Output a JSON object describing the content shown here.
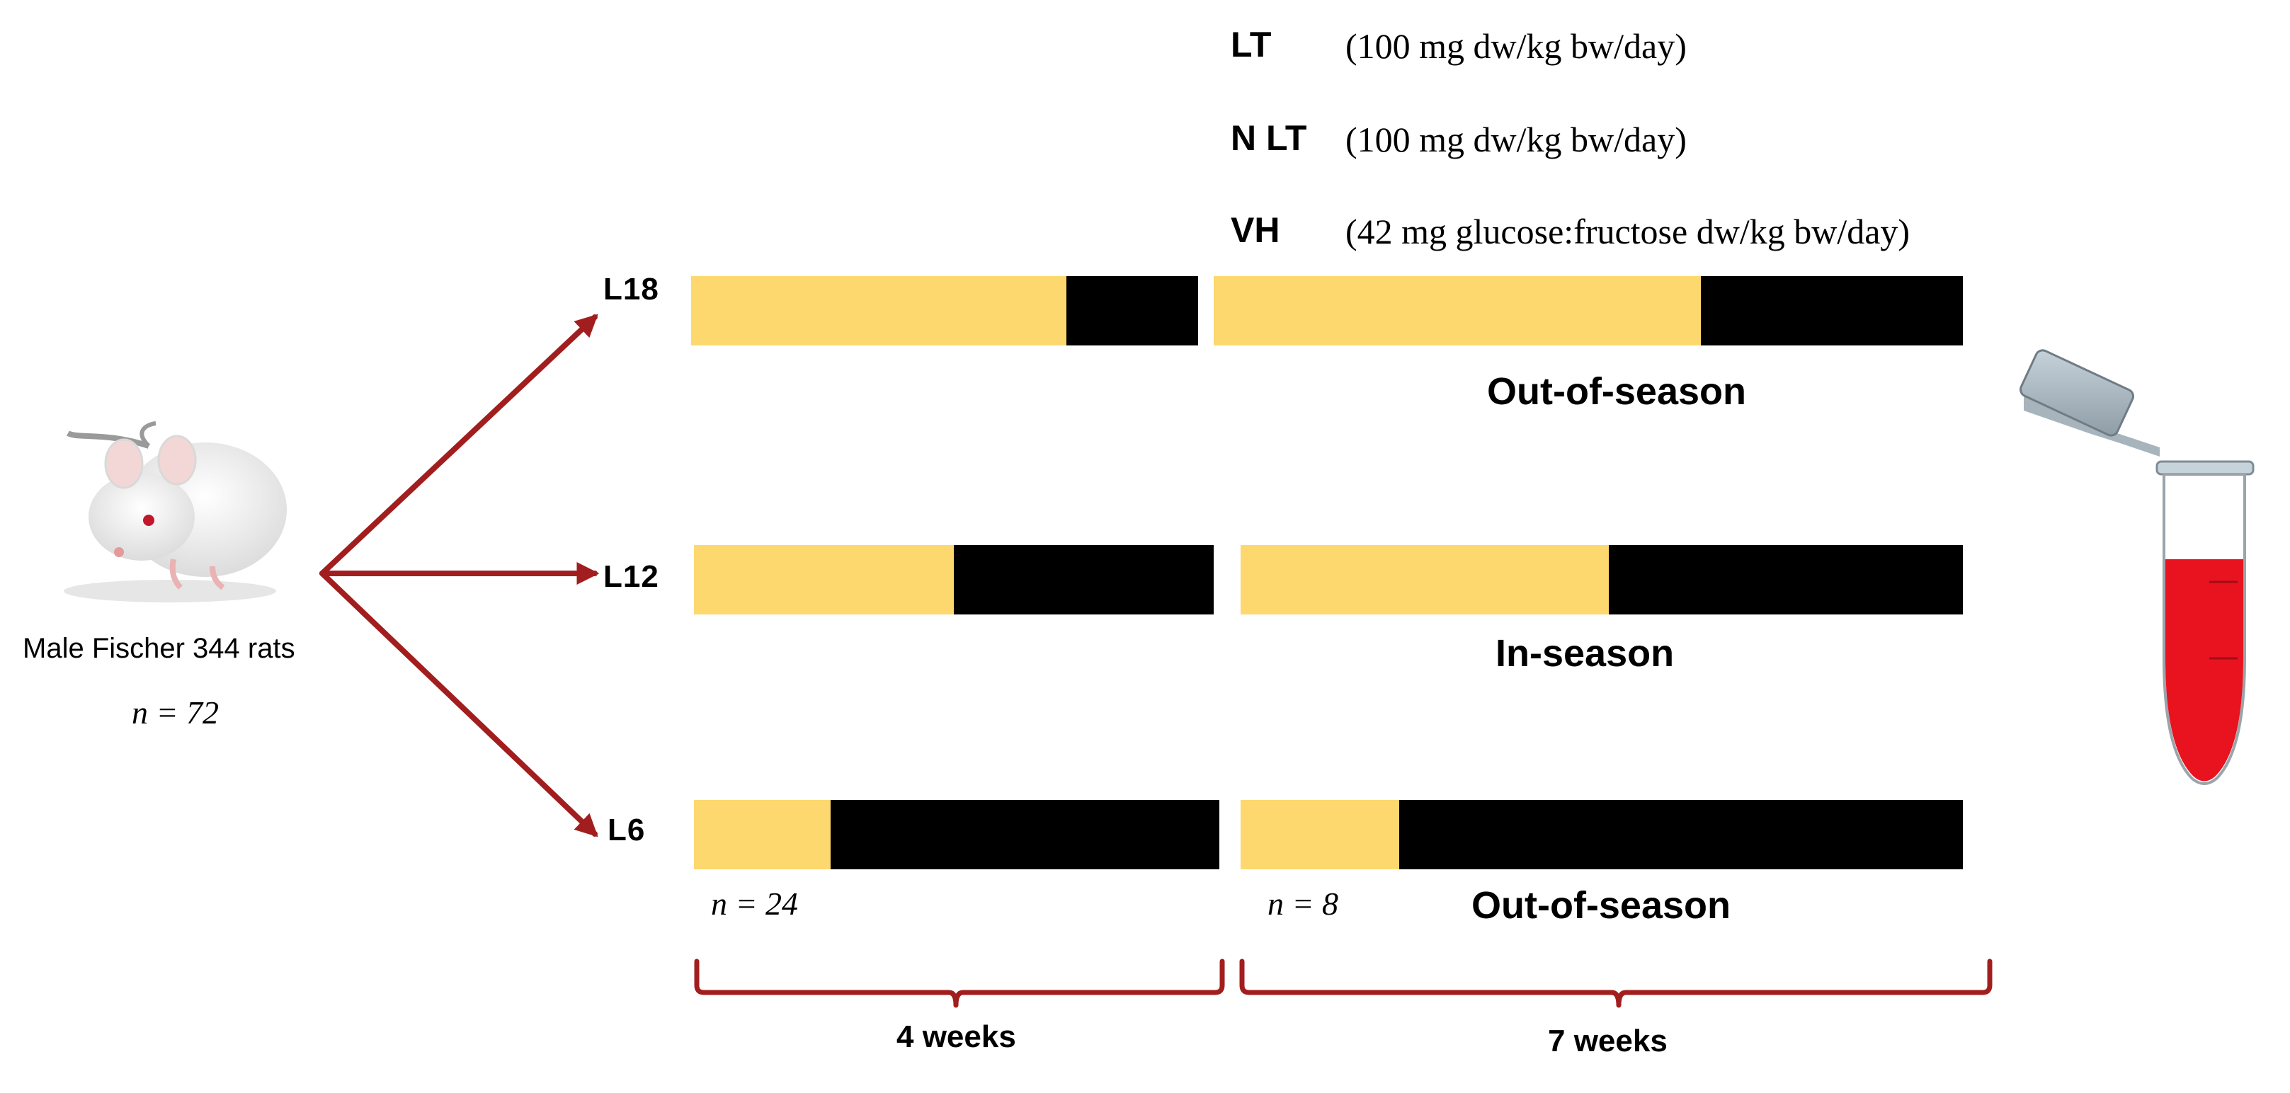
{
  "legend": [
    {
      "code": "LT",
      "dose": "(100 mg dw/kg bw/day)"
    },
    {
      "code": "N LT",
      "dose": "(100 mg dw/kg bw/day)"
    },
    {
      "code": "VH",
      "dose": "(42 mg glucose:fructose dw/kg bw/day)"
    }
  ],
  "animal": {
    "label": "Male Fischer 344 rats",
    "n_label": "n = 72",
    "n": 72
  },
  "groups": [
    {
      "label": "L18",
      "season": "Out-of-season",
      "light_fraction_phase1": 0.74,
      "light_fraction_phase2": 0.65
    },
    {
      "label": "L12",
      "season": "In-season",
      "light_fraction_phase1": 0.5,
      "light_fraction_phase2": 0.51
    },
    {
      "label": "L6",
      "season": "Out-of-season",
      "light_fraction_phase1": 0.26,
      "light_fraction_phase2": 0.22
    }
  ],
  "phase_counts": {
    "phase1_label": "n = 24",
    "phase2_label": "n = 8"
  },
  "durations": {
    "phase1": "4 weeks",
    "phase2": "7 weeks"
  },
  "colors": {
    "light": "#fcd86f",
    "dark": "#000000",
    "arrow": "#a21e1e",
    "blood": "#e8131f"
  }
}
